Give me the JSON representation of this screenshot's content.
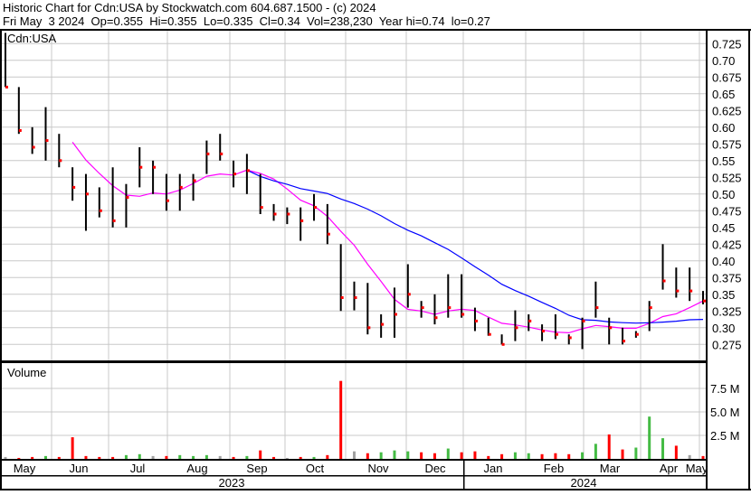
{
  "header": {
    "line1": "Historic Chart for Cdn:USA by Stockwatch.com 604.687.1500 - (c) 2024",
    "line2": "Fri May  3 2024  Op=0.355  Hi=0.355  Lo=0.335  Cl=0.34  Vol=238,230  Year hi=0.74  lo=0.27"
  },
  "symbol_label": "Cdn:USA",
  "volume_label": "Volume",
  "colors": {
    "bar": "#000000",
    "close_tick": "#ff0000",
    "ma_short": "#ff00ff",
    "ma_long": "#0000ff",
    "vol_down": "#ff0000",
    "vol_up": "#44bb44",
    "vol_flat": "#a0a0a0",
    "grid": "#c8c8c8"
  },
  "months": [
    "May",
    "Jun",
    "Jul",
    "Aug",
    "Sep",
    "Oct",
    "Nov",
    "Dec",
    "Jan",
    "Feb",
    "Mar",
    "Apr",
    "May"
  ],
  "years": [
    "2023",
    "2024"
  ],
  "chart_data": {
    "type": "ohlc",
    "title": "Historic Chart for Cdn:USA",
    "price_axis": {
      "ylim": [
        0.25,
        0.75
      ],
      "ticks": [
        0.725,
        0.7,
        0.675,
        0.65,
        0.625,
        0.6,
        0.575,
        0.55,
        0.525,
        0.5,
        0.475,
        0.45,
        0.425,
        0.4,
        0.375,
        0.35,
        0.325,
        0.3,
        0.275
      ],
      "tick_labels": [
        "0.725",
        "0.70",
        "0.675",
        "0.65",
        "0.625",
        "0.60",
        "0.575",
        "0.55",
        "0.525",
        "0.50",
        "0.475",
        "0.45",
        "0.425",
        "0.40",
        "0.375",
        "0.35",
        "0.325",
        "0.30",
        "0.275"
      ]
    },
    "volume_axis": {
      "unit": "M",
      "ticks": [
        2.5,
        5.0,
        7.5
      ],
      "tick_labels": [
        "2.5 M",
        "5.0 M",
        "7.5 M"
      ]
    },
    "grid": true,
    "moving_averages": [
      {
        "color": "magenta",
        "period_bars": 6
      },
      {
        "color": "blue",
        "period_bars": 19
      }
    ],
    "bars": {
      "high": [
        0.741,
        0.66,
        0.6,
        0.63,
        0.59,
        0.54,
        0.53,
        0.51,
        0.54,
        0.515,
        0.57,
        0.55,
        0.53,
        0.53,
        0.53,
        0.58,
        0.59,
        0.55,
        0.56,
        0.53,
        0.485,
        0.48,
        0.48,
        0.5,
        0.485,
        0.425,
        0.369,
        0.367,
        0.32,
        0.36,
        0.395,
        0.34,
        0.35,
        0.38,
        0.38,
        0.33,
        0.315,
        0.29,
        0.326,
        0.32,
        0.305,
        0.32,
        0.29,
        0.315,
        0.369,
        0.315,
        0.3,
        0.295,
        0.34,
        0.425,
        0.39,
        0.39,
        0.355
      ],
      "low": [
        0.66,
        0.59,
        0.56,
        0.55,
        0.54,
        0.49,
        0.445,
        0.465,
        0.45,
        0.45,
        0.51,
        0.5,
        0.475,
        0.475,
        0.49,
        0.53,
        0.55,
        0.51,
        0.5,
        0.47,
        0.46,
        0.455,
        0.43,
        0.46,
        0.425,
        0.325,
        0.326,
        0.29,
        0.285,
        0.285,
        0.33,
        0.315,
        0.305,
        0.315,
        0.315,
        0.295,
        0.288,
        0.275,
        0.28,
        0.295,
        0.28,
        0.283,
        0.275,
        0.268,
        0.315,
        0.275,
        0.275,
        0.285,
        0.295,
        0.357,
        0.345,
        0.34,
        0.335
      ],
      "close": [
        0.66,
        0.595,
        0.57,
        0.58,
        0.55,
        0.51,
        0.5,
        0.475,
        0.46,
        0.495,
        0.54,
        0.54,
        0.49,
        0.51,
        0.52,
        0.56,
        0.56,
        0.53,
        0.535,
        0.48,
        0.47,
        0.47,
        0.46,
        0.48,
        0.44,
        0.345,
        0.345,
        0.3,
        0.305,
        0.32,
        0.35,
        0.33,
        0.315,
        0.33,
        0.32,
        0.31,
        0.29,
        0.275,
        0.3,
        0.31,
        0.295,
        0.29,
        0.285,
        0.31,
        0.33,
        0.3,
        0.28,
        0.29,
        0.33,
        0.37,
        0.355,
        0.355,
        0.34
      ],
      "volume_m": [
        0.2,
        0.1,
        0.2,
        0.3,
        0.2,
        2.3,
        0.3,
        0.2,
        0.2,
        0.4,
        0.5,
        0.3,
        0.3,
        0.4,
        0.3,
        0.4,
        0.3,
        0.2,
        0.3,
        0.9,
        0.2,
        0.1,
        0.2,
        0.2,
        0.4,
        8.3,
        0.8,
        0.6,
        0.7,
        0.9,
        0.8,
        0.7,
        0.6,
        1.1,
        0.7,
        0.8,
        0.3,
        0.5,
        0.7,
        0.6,
        0.5,
        0.6,
        0.5,
        0.7,
        1.6,
        2.6,
        1.0,
        1.2,
        4.5,
        2.2,
        1.4,
        0.4,
        0.3
      ]
    }
  }
}
